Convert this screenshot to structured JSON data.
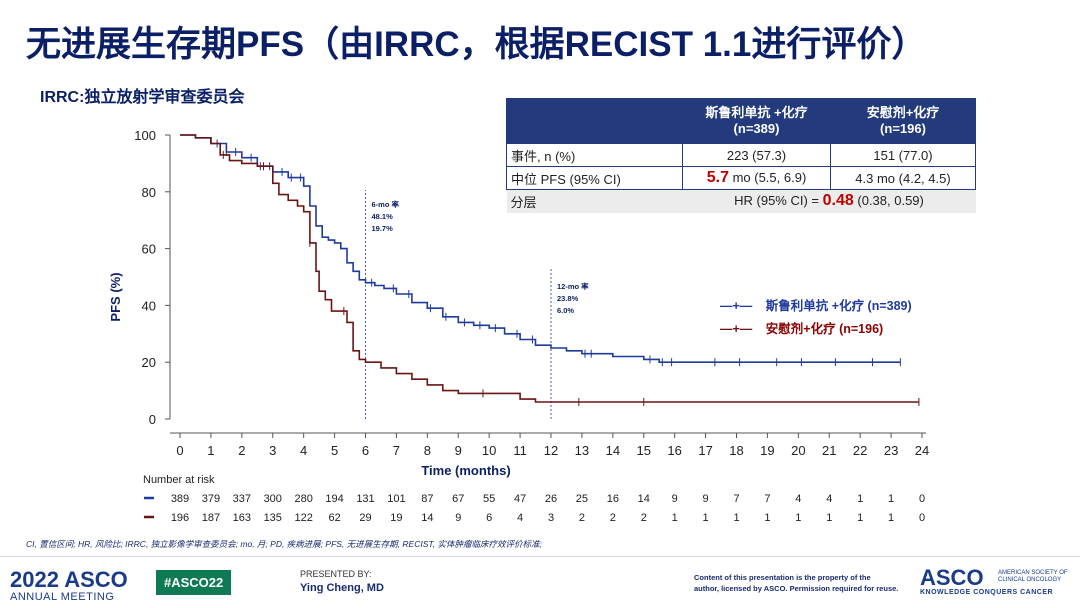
{
  "title": "无进展生存期PFS（由IRRC，根据RECIST 1.1进行评价）",
  "subtitle": "IRRC:独立放射学审查委员会",
  "table": {
    "col1_header": "斯鲁利单抗 +化疗\n(n=389)",
    "col2_header": "安慰剂+化疗\n(n=196)",
    "col1_header_l1": "斯鲁利单抗 +化疗",
    "col1_header_l2": "(n=389)",
    "col2_header_l1": "安慰剂+化疗",
    "col2_header_l2": "(n=196)",
    "events_label": "事件, n (%)",
    "events_1": "223 (57.3)",
    "events_2": "151 (77.0)",
    "median_label": "中位 PFS (95% CI)",
    "median_1_value": "5.7",
    "median_1_rest": " mo (5.5, 6.9)",
    "median_2": "4.3 mo (4.2, 4.5)",
    "strat_label": "分层",
    "hr_prefix": "HR (95% CI) = ",
    "hr_value": "0.48",
    "hr_suffix": " (0.38, 0.59)"
  },
  "chart_data": {
    "type": "line",
    "title": "",
    "xlabel": "Time (months)",
    "ylabel": "PFS (%)",
    "xlim": [
      0,
      24
    ],
    "ylim": [
      0,
      100
    ],
    "xticks": [
      0,
      1,
      2,
      3,
      4,
      5,
      6,
      7,
      8,
      9,
      10,
      11,
      12,
      13,
      14,
      15,
      16,
      17,
      18,
      19,
      20,
      21,
      22,
      23,
      24
    ],
    "yticks": [
      0,
      20,
      40,
      60,
      80,
      100
    ],
    "series": [
      {
        "name": "斯鲁利单抗 +化疗 (n=389)",
        "color": "#1f3a9e",
        "x": [
          0,
          0.5,
          1,
          1.5,
          2,
          2.5,
          3,
          3.5,
          4,
          4.2,
          4.4,
          4.6,
          4.8,
          5,
          5.2,
          5.4,
          5.6,
          5.8,
          6,
          6.3,
          6.6,
          7,
          7.5,
          8,
          8.5,
          9,
          9.5,
          10,
          10.5,
          11,
          11.5,
          12,
          12.5,
          13,
          14,
          15,
          15.5,
          16,
          18,
          20,
          22,
          23.3
        ],
        "y": [
          100,
          99,
          97,
          94,
          92,
          89,
          87,
          85,
          82,
          75,
          68,
          64,
          63,
          62,
          60,
          55,
          52,
          49,
          48,
          47,
          46,
          44,
          41,
          39,
          36,
          34,
          33,
          32,
          30,
          28,
          26,
          25,
          24,
          23,
          22,
          21,
          20,
          20,
          20,
          20,
          20,
          20
        ],
        "censor_x": [
          1.2,
          1.5,
          1.8,
          2.3,
          2.6,
          2.9,
          3.3,
          3.6,
          3.9,
          6.2,
          6.9,
          7.4,
          8.1,
          8.6,
          9.2,
          9.7,
          10.2,
          10.9,
          11.4,
          13.1,
          13.3,
          15.2,
          15.6,
          15.9,
          17.3,
          18.1,
          19.3,
          20.1,
          21.2,
          22.4,
          23.3
        ],
        "six_mo": "48.1%",
        "twelve_mo": "23.8%"
      },
      {
        "name": "安慰剂+化疗 (n=196)",
        "color": "#6b1414",
        "x": [
          0,
          0.5,
          1,
          1.3,
          1.6,
          2,
          2.5,
          3,
          3.2,
          3.5,
          3.8,
          4,
          4.2,
          4.4,
          4.5,
          4.7,
          4.9,
          5.2,
          5.4,
          5.6,
          5.8,
          6,
          6.5,
          7,
          7.5,
          8,
          8.5,
          9,
          10,
          11,
          11.5,
          12,
          14,
          16,
          20,
          23.9
        ],
        "y": [
          100,
          99,
          97,
          93,
          91,
          90,
          89,
          83,
          79,
          77,
          75,
          73,
          62,
          52,
          45,
          42,
          38,
          38,
          34,
          24,
          21,
          20,
          18,
          16,
          14,
          12,
          10,
          9,
          9,
          7,
          6,
          6,
          6,
          6,
          6,
          6
        ],
        "censor_x": [
          1.4,
          2.7,
          4.2,
          5.3,
          9.8,
          12.9,
          15.0,
          23.9
        ],
        "six_mo": "19.7%",
        "twelve_mo": "6.0%"
      }
    ],
    "annotations": [
      {
        "x": 6,
        "label": "6-mo 率",
        "v1": "48.1%",
        "v2": "19.7%"
      },
      {
        "x": 12,
        "label": "12-mo 率",
        "v1": "23.8%",
        "v2": "6.0%"
      }
    ],
    "risk_title": "Number at risk",
    "risk": [
      [
        389,
        379,
        337,
        300,
        280,
        194,
        131,
        101,
        87,
        67,
        55,
        47,
        26,
        25,
        16,
        14,
        9,
        9,
        7,
        7,
        4,
        4,
        1,
        1,
        0
      ],
      [
        196,
        187,
        163,
        135,
        122,
        62,
        29,
        19,
        14,
        9,
        6,
        4,
        3,
        2,
        2,
        2,
        1,
        1,
        1,
        1,
        1,
        1,
        1,
        1,
        0
      ]
    ]
  },
  "legend": {
    "item1": "斯鲁利单抗 +化疗 (n=389)",
    "item2": "安慰剂+化疗 (n=196)"
  },
  "footnote": "CI, 置信区间; HR, 风险比; IRRC, 独立影像学审查委员会; mo, 月; PD, 疾病进展; PFS, 无进展生存期, RECIST, 实体肿瘤临床疗效评价标准;",
  "footer": {
    "year_asco": "2022 ASCO",
    "annual_meeting": "ANNUAL MEETING",
    "hashtag": "#ASCO22",
    "presented_by": "PRESENTED BY:",
    "presenter": "Ying Cheng, MD",
    "copyright_1": "Content of this presentation is the property of the",
    "copyright_2": "author, licensed by ASCO. Permission required for reuse.",
    "asco_logo": "ASCO",
    "society_1": "AMERICAN SOCIETY OF",
    "society_2": "CLINICAL ONCOLOGY",
    "kcc": "KNOWLEDGE CONQUERS CANCER"
  }
}
